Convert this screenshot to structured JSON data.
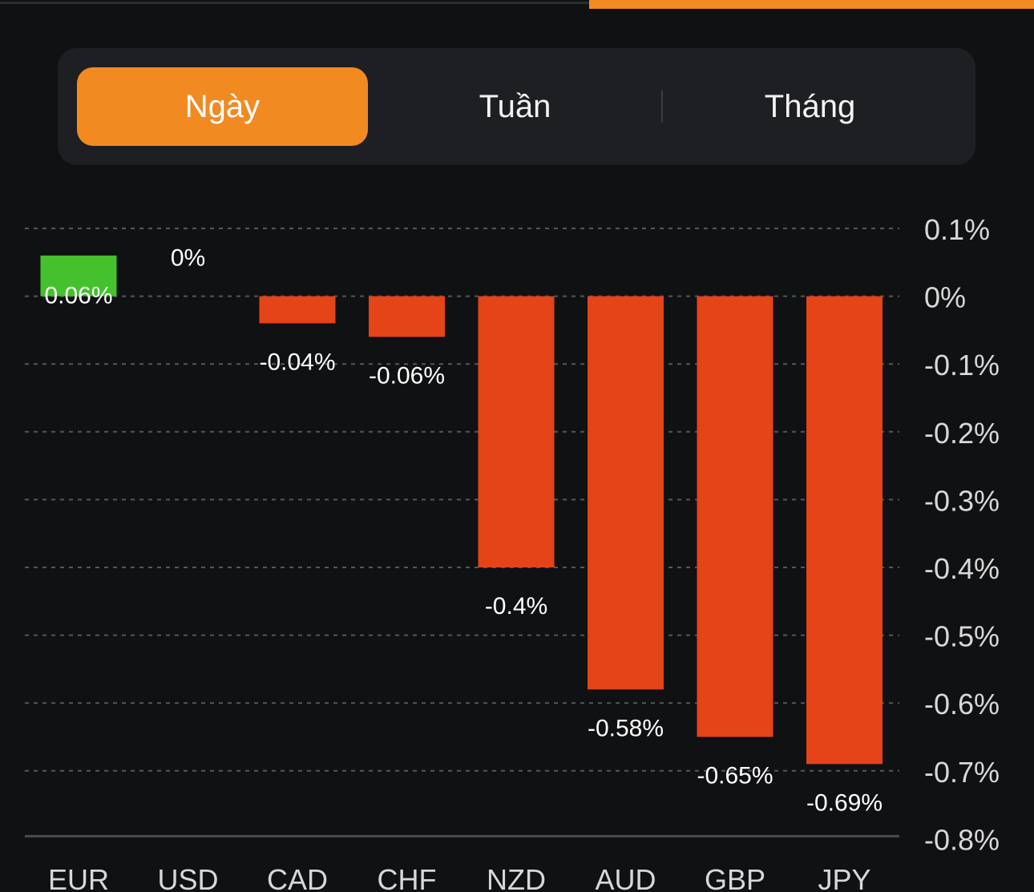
{
  "tabs": [
    {
      "label": "Ngày",
      "selected": true
    },
    {
      "label": "Tuần",
      "selected": false
    },
    {
      "label": "Tháng",
      "selected": false
    }
  ],
  "colors": {
    "accent": "#f28a22",
    "positive": "#45c12d",
    "negative": "#e54318",
    "background": "#101113",
    "grid": "#55575c",
    "text": "#ffffff",
    "axis_text": "#d8d8d8"
  },
  "chart_data": {
    "type": "bar",
    "categories": [
      "EUR",
      "USD",
      "CAD",
      "CHF",
      "NZD",
      "AUD",
      "GBP",
      "JPY"
    ],
    "values": [
      0.06,
      0,
      -0.04,
      -0.06,
      -0.4,
      -0.58,
      -0.65,
      -0.69
    ],
    "data_labels": [
      "0.06%",
      "0%",
      "-0.04%",
      "-0.06%",
      "-0.4%",
      "-0.58%",
      "-0.65%",
      "-0.69%"
    ],
    "y_ticks": [
      0.1,
      0,
      -0.1,
      -0.2,
      -0.3,
      -0.4,
      -0.5,
      -0.6,
      -0.7,
      -0.8
    ],
    "y_tick_labels": [
      "0.1%",
      "0%",
      "-0.1%",
      "-0.2%",
      "-0.3%",
      "-0.4%",
      "-0.5%",
      "-0.6%",
      "-0.7%",
      "-0.8%"
    ],
    "ylim": [
      -0.8,
      0.1
    ],
    "grid": true,
    "y_axis_side": "right"
  }
}
